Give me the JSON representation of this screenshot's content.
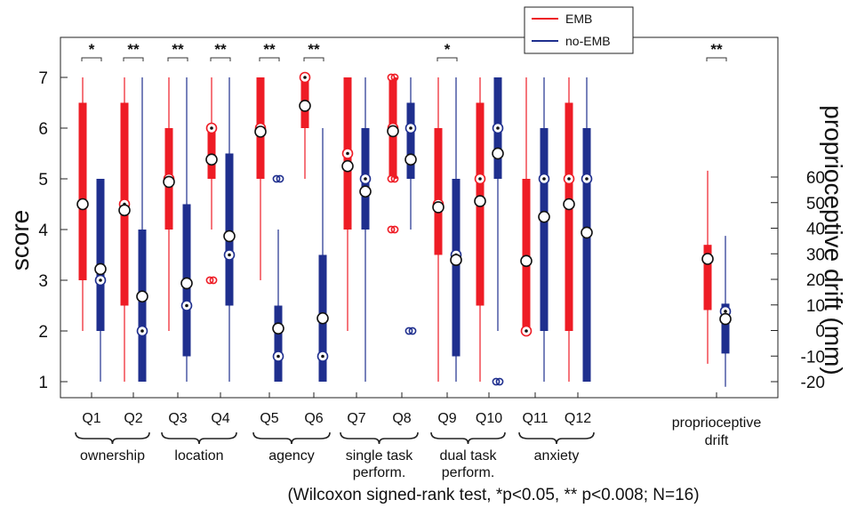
{
  "chart_data": {
    "type": "box",
    "left_axis": {
      "title": "score",
      "ylim": [
        0.75,
        7.3
      ],
      "ticks": [
        1,
        2,
        3,
        4,
        5,
        6,
        7
      ]
    },
    "right_axis": {
      "title": "proprioceptive drift (mm)",
      "ticks": [
        -20,
        -10,
        0,
        10,
        20,
        30,
        40,
        50,
        60
      ]
    },
    "categories": [
      "Q1",
      "Q2",
      "Q3",
      "Q4",
      "Q5",
      "Q6",
      "Q7",
      "Q8",
      "Q9",
      "Q10",
      "Q11",
      "Q12",
      "proprioceptive drift"
    ],
    "groups": [
      {
        "label": "ownership",
        "items": [
          "Q1",
          "Q2"
        ]
      },
      {
        "label": "location",
        "items": [
          "Q3",
          "Q4"
        ]
      },
      {
        "label": "agency",
        "items": [
          "Q5",
          "Q6"
        ]
      },
      {
        "label": "single task perform.",
        "items": [
          "Q7",
          "Q8"
        ]
      },
      {
        "label": "dual task perform.",
        "items": [
          "Q9",
          "Q10"
        ]
      },
      {
        "label": "anxiety",
        "items": [
          "Q11",
          "Q12"
        ]
      }
    ],
    "series": [
      {
        "name": "EMB",
        "color": "#ee1c25"
      },
      {
        "name": "no-EMB",
        "color": "#1f2f8e"
      }
    ],
    "boxes": [
      {
        "cat": "Q1",
        "series": "EMB",
        "whisker_low": 2,
        "q1": 3,
        "median": 4.5,
        "q3": 6.5,
        "whisker_high": 7,
        "mean": 4.5,
        "outliers": []
      },
      {
        "cat": "Q1",
        "series": "no-EMB",
        "whisker_low": 1,
        "q1": 2,
        "median": 3,
        "q3": 5,
        "whisker_high": 5,
        "mean": 3.22,
        "outliers": []
      },
      {
        "cat": "Q2",
        "series": "EMB",
        "whisker_low": 1,
        "q1": 2.5,
        "median": 4.5,
        "q3": 6.5,
        "whisker_high": 7,
        "mean": 4.38,
        "outliers": []
      },
      {
        "cat": "Q2",
        "series": "no-EMB",
        "whisker_low": 1,
        "q1": 1,
        "median": 2,
        "q3": 4,
        "whisker_high": 7,
        "mean": 2.68,
        "outliers": []
      },
      {
        "cat": "Q3",
        "series": "EMB",
        "whisker_low": 2,
        "q1": 4,
        "median": 5,
        "q3": 6,
        "whisker_high": 7,
        "mean": 4.94,
        "outliers": []
      },
      {
        "cat": "Q3",
        "series": "no-EMB",
        "whisker_low": 1,
        "q1": 1.5,
        "median": 2.5,
        "q3": 4.5,
        "whisker_high": 7,
        "mean": 2.94,
        "outliers": []
      },
      {
        "cat": "Q4",
        "series": "EMB",
        "whisker_low": 4,
        "q1": 5,
        "median": 6,
        "q3": 6,
        "whisker_high": 7,
        "mean": 5.38,
        "outliers": [
          3
        ]
      },
      {
        "cat": "Q4",
        "series": "no-EMB",
        "whisker_low": 1,
        "q1": 2.5,
        "median": 3.5,
        "q3": 5.5,
        "whisker_high": 7,
        "mean": 3.87,
        "outliers": []
      },
      {
        "cat": "Q5",
        "series": "EMB",
        "whisker_low": 3,
        "q1": 5,
        "median": 6,
        "q3": 7,
        "whisker_high": 7,
        "mean": 5.93,
        "outliers": []
      },
      {
        "cat": "Q5",
        "series": "no-EMB",
        "whisker_low": 1,
        "q1": 1,
        "median": 1.5,
        "q3": 2.5,
        "whisker_high": 4,
        "mean": 2.05,
        "outliers": [
          5
        ]
      },
      {
        "cat": "Q6",
        "series": "EMB",
        "whisker_low": 5,
        "q1": 6,
        "median": 7,
        "q3": 7,
        "whisker_high": 7,
        "mean": 6.44,
        "outliers": []
      },
      {
        "cat": "Q6",
        "series": "no-EMB",
        "whisker_low": 1,
        "q1": 1,
        "median": 1.5,
        "q3": 3.5,
        "whisker_high": 6,
        "mean": 2.25,
        "outliers": []
      },
      {
        "cat": "Q7",
        "series": "EMB",
        "whisker_low": 2,
        "q1": 4,
        "median": 5.5,
        "q3": 7,
        "whisker_high": 7,
        "mean": 5.25,
        "outliers": []
      },
      {
        "cat": "Q7",
        "series": "no-EMB",
        "whisker_low": 1,
        "q1": 4,
        "median": 5,
        "q3": 6,
        "whisker_high": 7,
        "mean": 4.75,
        "outliers": []
      },
      {
        "cat": "Q8",
        "series": "EMB",
        "whisker_low": 5,
        "q1": 5,
        "median": 6,
        "q3": 7,
        "whisker_high": 7,
        "mean": 5.94,
        "outliers": [
          4,
          5,
          7
        ]
      },
      {
        "cat": "Q8",
        "series": "no-EMB",
        "whisker_low": 4,
        "q1": 5,
        "median": 6,
        "q3": 6.5,
        "whisker_high": 7,
        "mean": 5.38,
        "outliers": [
          2
        ]
      },
      {
        "cat": "Q9",
        "series": "EMB",
        "whisker_low": 1,
        "q1": 3.5,
        "median": 4.5,
        "q3": 6,
        "whisker_high": 7,
        "mean": 4.44,
        "outliers": []
      },
      {
        "cat": "Q9",
        "series": "no-EMB",
        "whisker_low": 1,
        "q1": 1.5,
        "median": 3.5,
        "q3": 5,
        "whisker_high": 7,
        "mean": 3.4,
        "outliers": []
      },
      {
        "cat": "Q10",
        "series": "EMB",
        "whisker_low": 1,
        "q1": 2.5,
        "median": 5,
        "q3": 6.5,
        "whisker_high": 7,
        "mean": 4.56,
        "outliers": []
      },
      {
        "cat": "Q10",
        "series": "no-EMB",
        "whisker_low": 2,
        "q1": 5,
        "median": 6,
        "q3": 7,
        "whisker_high": 7,
        "mean": 5.5,
        "outliers": [
          1
        ]
      },
      {
        "cat": "Q11",
        "series": "EMB",
        "whisker_low": 2,
        "q1": 2,
        "median": 2,
        "q3": 5,
        "whisker_high": 7,
        "mean": 3.38,
        "outliers": []
      },
      {
        "cat": "Q11",
        "series": "no-EMB",
        "whisker_low": 1,
        "q1": 2,
        "median": 5,
        "q3": 6,
        "whisker_high": 7,
        "mean": 4.25,
        "outliers": []
      },
      {
        "cat": "Q12",
        "series": "EMB",
        "whisker_low": 1,
        "q1": 2,
        "median": 5,
        "q3": 6.5,
        "whisker_high": 7,
        "mean": 4.5,
        "outliers": []
      },
      {
        "cat": "Q12",
        "series": "no-EMB",
        "whisker_low": 1,
        "q1": 1,
        "median": 5,
        "q3": 6,
        "whisker_high": 7,
        "mean": 3.94,
        "outliers": []
      },
      {
        "cat": "proprioceptive drift",
        "series": "EMB",
        "axis": "right",
        "whisker_low": -13,
        "q1": 8,
        "median": 28,
        "q3": 33.5,
        "whisker_high": 62.5,
        "mean": 28,
        "outliers": []
      },
      {
        "cat": "proprioceptive drift",
        "series": "no-EMB",
        "axis": "right",
        "whisker_low": -22,
        "q1": -9,
        "median": 7.5,
        "q3": 10.5,
        "whisker_high": 37,
        "mean": 4.5,
        "outliers": []
      }
    ],
    "significance": [
      {
        "cat": "Q1",
        "label": "*"
      },
      {
        "cat": "Q2",
        "label": "**"
      },
      {
        "cat": "Q3",
        "label": "**"
      },
      {
        "cat": "Q4",
        "label": "**"
      },
      {
        "cat": "Q5",
        "label": "**"
      },
      {
        "cat": "Q6",
        "label": "**"
      },
      {
        "cat": "Q9",
        "label": "*"
      },
      {
        "cat": "proprioceptive drift",
        "label": "**"
      }
    ],
    "legend_position": "top-right",
    "footnote": "(Wilcoxon signed-rank test, *p<0.05, ** p<0.008; N=16)"
  }
}
